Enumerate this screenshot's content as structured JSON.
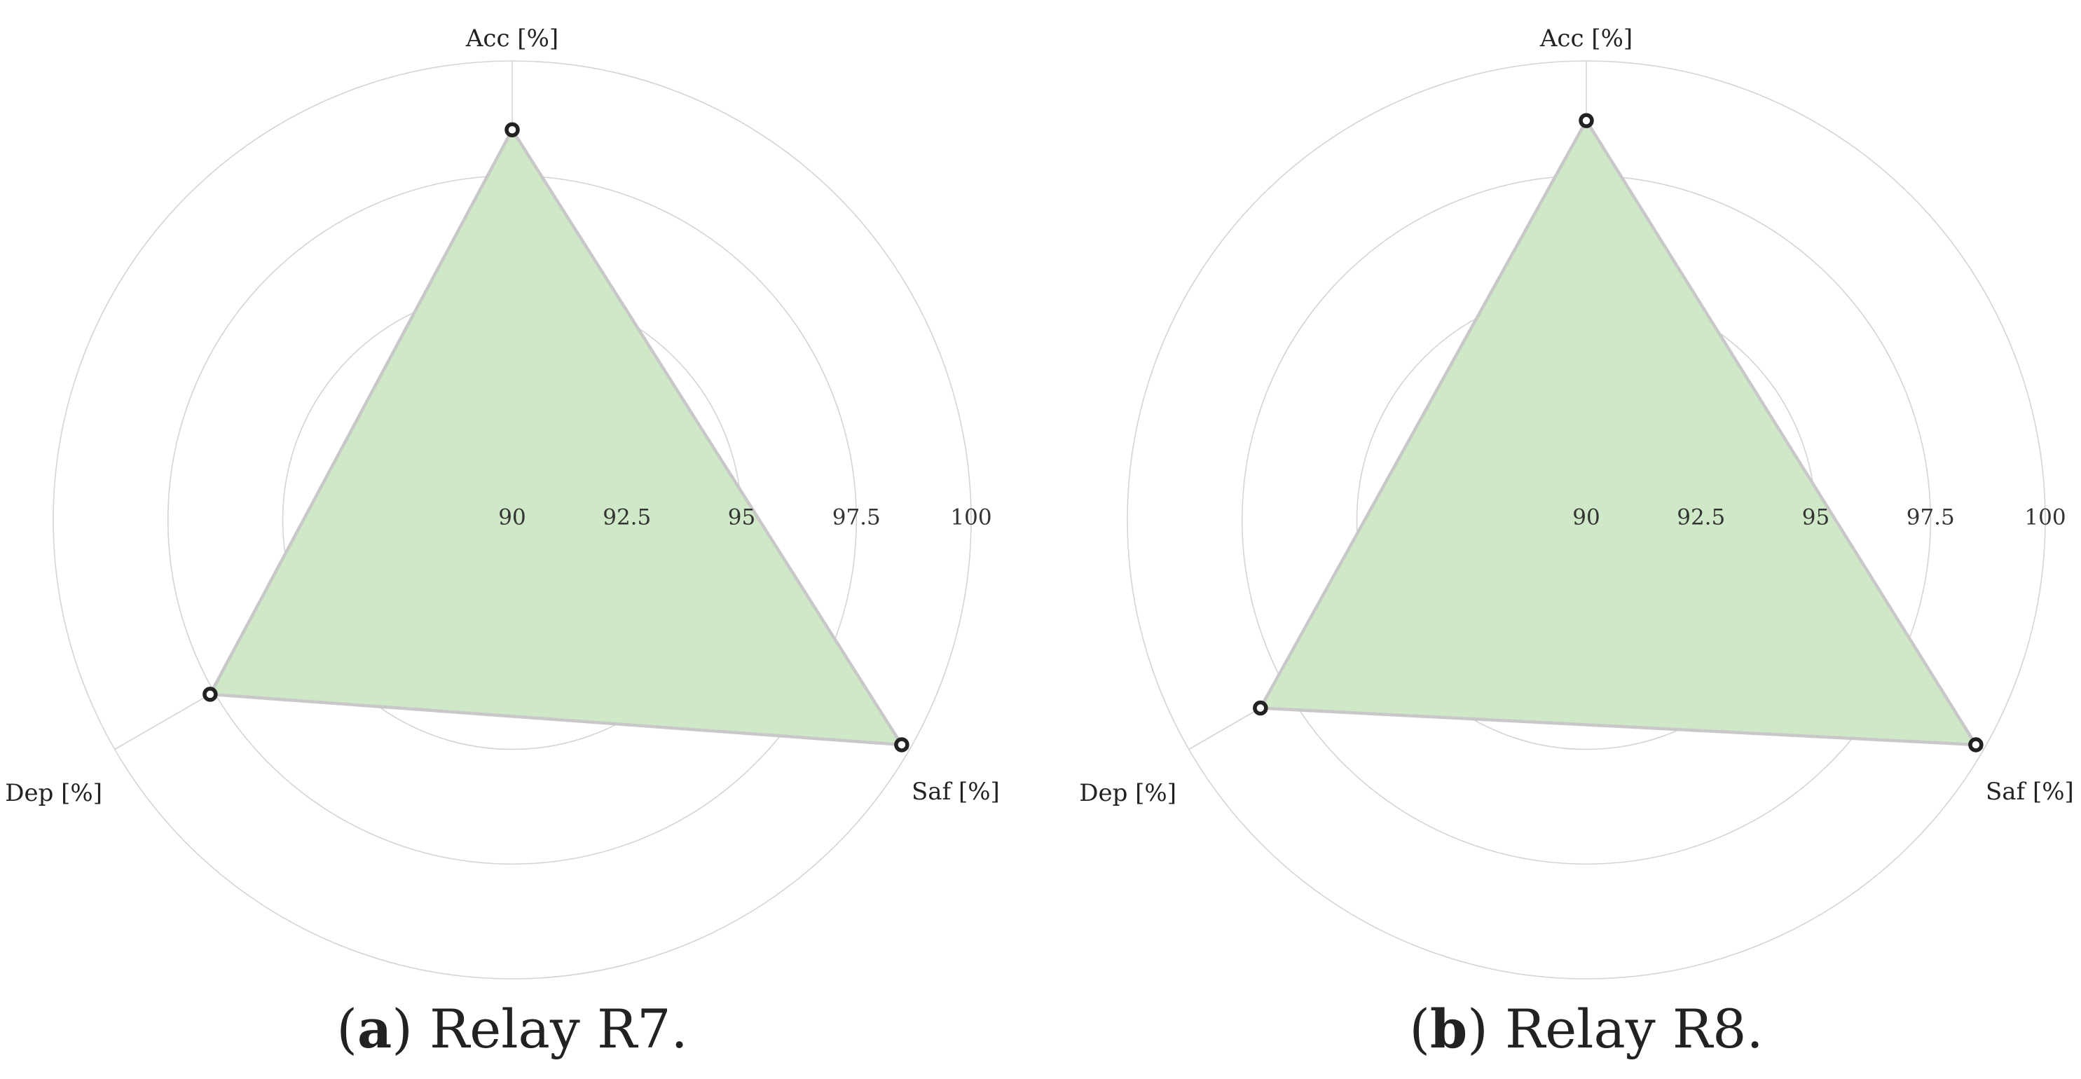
{
  "chart_data": [
    {
      "type": "radar",
      "caption": {
        "letter": "a",
        "text": "Relay R7."
      },
      "axes": [
        "Acc [%]",
        "Saf [%]",
        "Dep [%]"
      ],
      "radial_ticks": [
        "90",
        "92.5",
        "95",
        "97.5",
        "100"
      ],
      "rlim": [
        90,
        100
      ],
      "grid": true,
      "values": [
        98.5,
        99.8,
        97.6
      ],
      "fill_color": "#cfe8c7",
      "edge_color": "#c8c8c8",
      "marker_color": "#222222"
    },
    {
      "type": "radar",
      "caption": {
        "letter": "b",
        "text": "Relay R8."
      },
      "axes": [
        "Acc [%]",
        "Saf [%]",
        "Dep [%]"
      ],
      "radial_ticks": [
        "90",
        "92.5",
        "95",
        "97.5",
        "100"
      ],
      "rlim": [
        90,
        100
      ],
      "grid": true,
      "values": [
        98.7,
        99.8,
        98.2
      ],
      "fill_color": "#cfe8c7",
      "edge_color": "#c8c8c8",
      "marker_color": "#222222"
    }
  ]
}
